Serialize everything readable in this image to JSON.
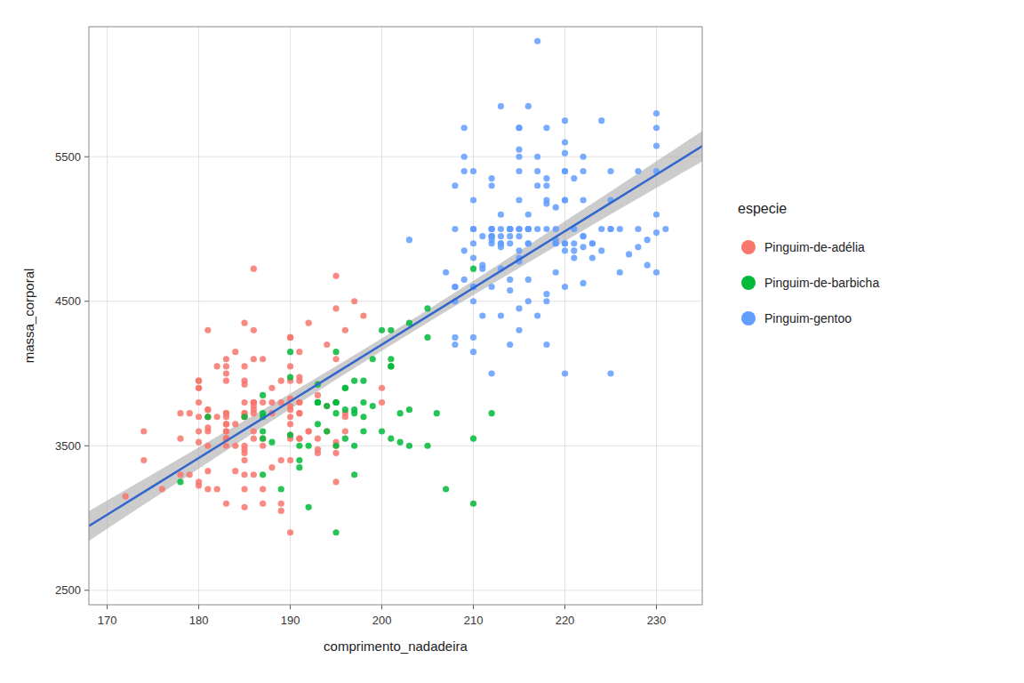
{
  "chart_data": {
    "type": "scatter",
    "xlabel": "comprimento_nadadeira",
    "ylabel": "massa_corporal",
    "legend_title": "especie",
    "legend": "right",
    "grid": true,
    "xlim": [
      168,
      235
    ],
    "ylim": [
      2400,
      6400
    ],
    "xticks": [
      170,
      180,
      190,
      200,
      210,
      220,
      230
    ],
    "yticks": [
      2500,
      3500,
      4500,
      5500
    ],
    "series": [
      {
        "name": "Pinguim-de-adélia",
        "type": "scatter",
        "color": "#F8766D",
        "x": [
          181,
          186,
          195,
          193,
          190,
          181,
          195,
          193,
          190,
          186,
          180,
          182,
          191,
          198,
          185,
          195,
          197,
          184,
          194,
          174,
          180,
          189,
          185,
          180,
          187,
          183,
          187,
          172,
          180,
          178,
          178,
          188,
          184,
          195,
          196,
          190,
          180,
          181,
          184,
          182,
          195,
          186,
          196,
          185,
          190,
          182,
          179,
          190,
          191,
          186,
          188,
          190,
          200,
          187,
          191,
          186,
          193,
          181,
          190,
          195,
          185,
          186,
          185,
          192,
          190,
          187,
          185,
          186,
          185,
          190,
          187,
          191,
          186,
          190,
          200,
          187,
          191,
          186,
          193,
          181,
          190,
          195,
          185,
          186,
          192,
          185,
          184,
          195,
          188,
          174,
          185,
          185,
          185,
          176,
          180,
          186,
          183,
          188,
          181,
          180,
          192,
          183,
          183,
          183,
          181,
          191,
          181,
          189,
          183,
          180,
          185,
          183,
          179,
          191,
          194,
          186,
          190,
          183,
          183,
          196,
          185,
          190,
          191,
          191,
          180,
          194,
          183,
          178,
          183,
          183,
          183,
          181,
          189,
          185,
          183,
          180,
          183,
          189,
          183,
          181,
          189,
          183,
          185,
          196
        ],
        "values": [
          3750,
          3800,
          3250,
          3450,
          3650,
          3625,
          4675,
          3475,
          4250,
          3300,
          3700,
          3200,
          3800,
          4400,
          3700,
          3450,
          4500,
          3325,
          4200,
          3400,
          3600,
          3800,
          3950,
          3800,
          3800,
          3550,
          3200,
          3150,
          3950,
          3550,
          3300,
          3900,
          3650,
          3525,
          3725,
          3950,
          3250,
          3750,
          4150,
          3700,
          3800,
          3775,
          3700,
          4050,
          3575,
          4050,
          3300,
          3700,
          4150,
          3800,
          3350,
          3550,
          3800,
          3500,
          3950,
          3600,
          3550,
          4300,
          3400,
          4450,
          3300,
          4300,
          3700,
          4350,
          2900,
          4100,
          3725,
          4725,
          3075,
          4250,
          3100,
          3725,
          3550,
          3750,
          3900,
          3550,
          3975,
          3725,
          3850,
          3600,
          3775,
          4100,
          3925,
          3750,
          3600,
          3500,
          3500,
          3500,
          3725,
          3600,
          3725,
          3200,
          3800,
          3200,
          3525,
          3800,
          3550,
          3800,
          3500,
          3950,
          3600,
          3550,
          3650,
          3700,
          3700,
          3550,
          3325,
          3050,
          3100,
          3225,
          4350,
          4100,
          3725,
          3800,
          3775,
          4100,
          3825,
          3950,
          3550,
          4300,
          3475,
          4050,
          3550,
          3725,
          3900,
          3600,
          3500,
          3725,
          3725,
          3725,
          3650,
          3200,
          3100,
          3400,
          4000,
          3900,
          3600,
          3400,
          3600,
          3700,
          3950,
          4050,
          3450,
          3600
        ]
      },
      {
        "name": "Pinguim-de-barbicha",
        "type": "scatter",
        "color": "#00BA38",
        "x": [
          192,
          196,
          193,
          188,
          197,
          198,
          178,
          197,
          195,
          198,
          193,
          194,
          185,
          201,
          190,
          201,
          197,
          181,
          190,
          195,
          191,
          187,
          193,
          195,
          197,
          200,
          200,
          191,
          205,
          187,
          201,
          187,
          203,
          195,
          199,
          195,
          210,
          192,
          205,
          210,
          187,
          196,
          196,
          196,
          201,
          190,
          212,
          187,
          198,
          199,
          201,
          193,
          203,
          187,
          197,
          191,
          203,
          202,
          194,
          206,
          189,
          195,
          207,
          202,
          193,
          210,
          198,
          205
        ],
        "values": [
          3500,
          3900,
          3650,
          3525,
          3725,
          3950,
          3250,
          3750,
          4150,
          3700,
          3800,
          3775,
          3700,
          4050,
          3575,
          4050,
          3300,
          3700,
          4150,
          3800,
          3350,
          3550,
          3800,
          3500,
          3950,
          3600,
          4300,
          3400,
          4450,
          3300,
          4300,
          3700,
          4350,
          2900,
          4100,
          3725,
          4725,
          3075,
          4250,
          3100,
          3725,
          3550,
          3750,
          3900,
          3550,
          3975,
          3725,
          3850,
          3600,
          3775,
          4100,
          3925,
          3750,
          3600,
          3500,
          3500,
          3500,
          3725,
          3600,
          3725,
          3200,
          3800,
          3200,
          3525,
          3800,
          3550,
          3800,
          3500
        ]
      },
      {
        "name": "Pinguim-gentoo",
        "type": "scatter",
        "color": "#619CFF",
        "x": [
          211,
          230,
          210,
          218,
          215,
          210,
          211,
          219,
          209,
          215,
          214,
          216,
          214,
          213,
          210,
          217,
          210,
          221,
          209,
          222,
          218,
          215,
          213,
          215,
          215,
          215,
          216,
          215,
          210,
          220,
          222,
          209,
          207,
          230,
          220,
          220,
          213,
          219,
          208,
          208,
          208,
          225,
          210,
          216,
          222,
          217,
          210,
          225,
          213,
          215,
          210,
          220,
          210,
          225,
          217,
          220,
          208,
          220,
          208,
          224,
          208,
          221,
          214,
          231,
          219,
          230,
          214,
          229,
          220,
          223,
          216,
          221,
          217,
          216,
          230,
          209,
          220,
          215,
          223,
          212,
          221,
          212,
          224,
          212,
          228,
          218,
          218,
          212,
          230,
          218,
          228,
          212,
          224,
          214,
          226,
          216,
          222,
          203,
          225,
          219,
          228,
          216,
          215,
          210,
          219,
          208,
          209,
          216,
          229,
          213,
          230,
          217,
          230,
          217,
          222,
          214,
          214,
          220,
          218,
          220,
          213,
          225,
          222,
          221,
          211,
          218,
          215,
          218,
          216,
          220,
          226,
          227,
          220,
          212,
          219,
          218,
          222,
          212,
          215,
          210,
          223,
          212,
          212,
          215,
          212,
          213,
          212,
          214,
          213,
          211,
          213,
          215,
          212,
          214
        ],
        "values": [
          4750,
          5700,
          5400,
          4550,
          4800,
          5200,
          4400,
          5150,
          4650,
          5550,
          4650,
          5850,
          4200,
          5850,
          4150,
          6300,
          4800,
          5350,
          5700,
          5400,
          4500,
          5700,
          5000,
          4450,
          5700,
          5400,
          4500,
          4850,
          4500,
          5750,
          5200,
          5400,
          4700,
          5800,
          4600,
          5400,
          4400,
          5000,
          4600,
          5000,
          4500,
          5000,
          5000,
          4900,
          4875,
          5400,
          4250,
          5000,
          4875,
          5200,
          4600,
          5200,
          4600,
          5400,
          4400,
          5400,
          4600,
          5200,
          4200,
          5000,
          4250,
          4850,
          5000,
          5000,
          4900,
          4700,
          5000,
          4750,
          4000,
          4900,
          4650,
          4800,
          5500,
          5100,
          4975,
          5500,
          4900,
          4300,
          4800,
          5000,
          5000,
          4600,
          5750,
          5000,
          5400,
          5700,
          5000,
          4000,
          5400,
          5200,
          4875,
          5300,
          4850,
          4575,
          5000,
          5000,
          5500,
          4925,
          4000,
          4700,
          5000,
          5000,
          5500,
          4900,
          4925,
          5300,
          4850,
          5000,
          4925,
          4725,
          5575,
          5000,
          5100,
          5300,
          4950,
          4900,
          5000,
          4900,
          4200,
          5600,
          5100,
          5200,
          4625,
          4900,
          4725,
          5175,
          4775,
          5300,
          4900,
          4850,
          4700,
          4825,
          5525,
          5350,
          4900,
          5350,
          4950,
          4900,
          5000,
          5000,
          4900,
          4950,
          5000,
          5000,
          4950,
          4900,
          4925,
          4950,
          4950,
          4950,
          4900,
          4950,
          4950,
          5000
        ]
      },
      {
        "type": "line",
        "color": "#3366CC",
        "x": [
          168,
          170,
          175,
          180,
          185,
          190,
          195,
          200,
          205,
          210,
          215,
          220,
          225,
          230,
          235
        ],
        "values": [
          2944.9,
          3023.3,
          3219.5,
          3415.6,
          3611.7,
          3807.9,
          4004.0,
          4200.1,
          4396.3,
          4592.4,
          4788.6,
          4984.7,
          5180.8,
          5377.0,
          5573.1
        ]
      },
      {
        "type": "band",
        "color": "#AAAAAA",
        "x": [
          168,
          170,
          175,
          180,
          185,
          190,
          195,
          200,
          205,
          210,
          215,
          220,
          225,
          230,
          235
        ],
        "lower": [
          2842.0,
          2925.6,
          3134.2,
          3342.2,
          3549.2,
          3754.8,
          3957.8,
          4157.2,
          4352.1,
          4542.8,
          4730.5,
          4916.3,
          5101.0,
          5284.9,
          5468.3
        ],
        "upper": [
          3047.7,
          3121.1,
          3304.8,
          3489.0,
          3674.2,
          3861.0,
          4050.2,
          4243.1,
          4440.5,
          4642.1,
          4846.6,
          5053.1,
          5260.7,
          5469.1,
          5677.9
        ]
      }
    ]
  }
}
